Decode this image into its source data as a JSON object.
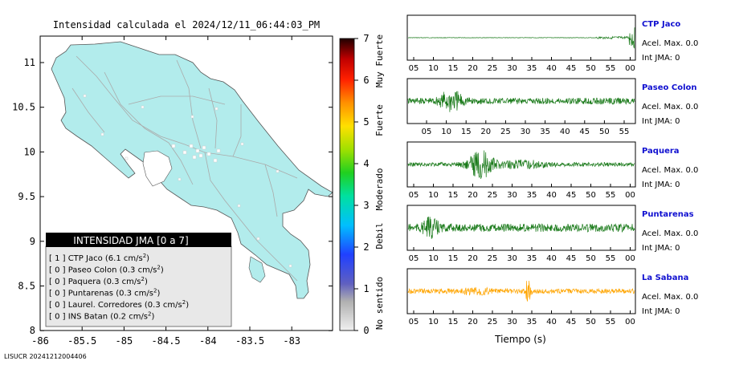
{
  "map": {
    "title": "Intensidad calculada el 2024/12/11_06:44:03_PM",
    "x_ticks": [
      "-86",
      "-85.5",
      "-85",
      "-84.5",
      "-84",
      "-83.5",
      "-83"
    ],
    "y_ticks": [
      "11",
      "10.5",
      "10",
      "9.5",
      "9",
      "8.5",
      "8"
    ],
    "footer": "LISUCR 20241212004406",
    "land_color": "#b2ecec",
    "legend": {
      "header": "INTENSIDAD JMA [0 a 7]",
      "items": [
        {
          "level": "[ 1 ]",
          "station": "CTP Jaco",
          "accel": "(6.1 cm/s",
          "sup": "2",
          "close": ")"
        },
        {
          "level": "[ 0 ]",
          "station": "Paseo Colon",
          "accel": "(0.3 cm/s",
          "sup": "2",
          "close": ")"
        },
        {
          "level": "[ 0 ]",
          "station": "Paquera",
          "accel": "(0.3 cm/s",
          "sup": "2",
          "close": ")"
        },
        {
          "level": "[ 0 ]",
          "station": "Puntarenas",
          "accel": "(0.3 cm/s",
          "sup": "2",
          "close": ")"
        },
        {
          "level": "[ 0 ]",
          "station": "Laurel. Corredores",
          "accel": "(0.3 cm/s",
          "sup": "2",
          "close": ")"
        },
        {
          "level": "[ 0 ]",
          "station": "INS Batan",
          "accel": "(0.2 cm/s",
          "sup": "2",
          "close": ")"
        }
      ]
    }
  },
  "colorbar": {
    "ticks": [
      "7",
      "6",
      "5",
      "4",
      "3",
      "2",
      "1",
      "0"
    ],
    "labels": [
      "Muy Fuerte",
      "Fuerte",
      "Moderado",
      "Debil",
      "No sentido"
    ]
  },
  "traces": {
    "xlabel": "Tiempo (s)",
    "panels": [
      {
        "name": "CTP Jaco",
        "accel": "Acel. Max. 0.0",
        "jma": "Int JMA: 0",
        "ticks": [
          "05",
          "10",
          "15",
          "20",
          "25",
          "30",
          "35",
          "40",
          "45",
          "50",
          "55",
          "00"
        ],
        "color": "#1a7a1a"
      },
      {
        "name": "Paseo Colon",
        "accel": "Acel. Max. 0.0",
        "jma": "Int JMA: 0",
        "ticks": [
          "05",
          "10",
          "15",
          "20",
          "25",
          "30",
          "35",
          "40",
          "45",
          "50",
          "55"
        ],
        "color": "#1a7a1a"
      },
      {
        "name": "Paquera",
        "accel": "Acel. Max. 0.0",
        "jma": "Int JMA: 0",
        "ticks": [
          "05",
          "10",
          "15",
          "20",
          "25",
          "30",
          "35",
          "40",
          "45",
          "50",
          "55",
          "00"
        ],
        "color": "#1a7a1a"
      },
      {
        "name": "Puntarenas",
        "accel": "Acel. Max. 0.0",
        "jma": "Int JMA: 0",
        "ticks": [
          "05",
          "10",
          "15",
          "20",
          "25",
          "30",
          "35",
          "40",
          "45",
          "50",
          "55",
          "00"
        ],
        "color": "#1a7a1a"
      },
      {
        "name": "La Sabana",
        "accel": "Acel. Max. 0.0",
        "jma": "Int JMA: 0",
        "ticks": [
          "05",
          "10",
          "15",
          "20",
          "25",
          "30",
          "35",
          "40",
          "45",
          "50",
          "55",
          "00"
        ],
        "color": "#ffa500"
      }
    ]
  }
}
